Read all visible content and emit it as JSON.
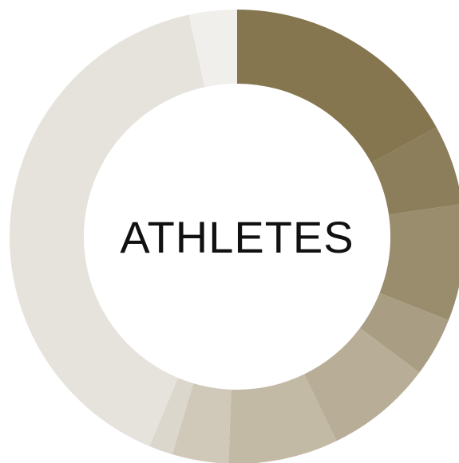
{
  "chart_data": {
    "type": "pie",
    "variant": "donut",
    "center_label": "ATHLETES",
    "values": [
      17.0,
      5.7,
      8.3,
      4.2,
      7.6,
      7.8,
      4.0,
      1.7,
      40.3,
      3.4
    ],
    "colors": [
      "#85764f",
      "#8c7e5b",
      "#9a8d6e",
      "#a99e83",
      "#b8ae98",
      "#c3baa6",
      "#d0c9b9",
      "#dcd7cc",
      "#e6e3dc",
      "#f0efeb"
    ],
    "legend": "none",
    "data_labels": "none"
  }
}
